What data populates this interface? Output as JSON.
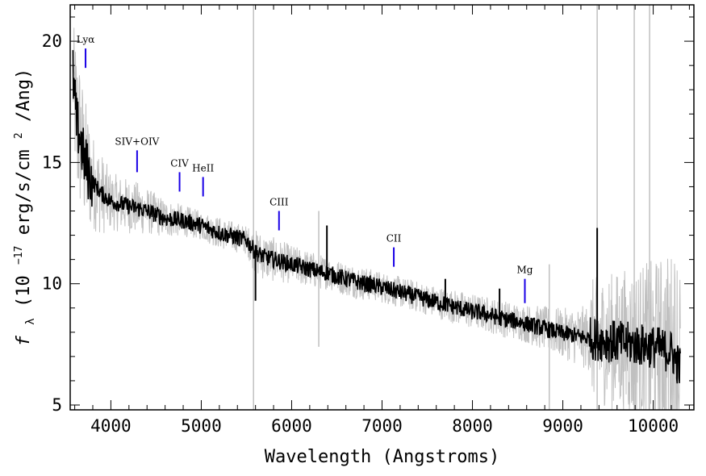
{
  "chart_data": {
    "type": "line",
    "title": "",
    "xlabel": "Wavelength (Angstroms)",
    "ylabel_prefix": "f",
    "ylabel_sub": "λ",
    "ylabel_unit_open": " (10",
    "ylabel_exp": "−17",
    "ylabel_unit_mid": " erg/s/cm",
    "ylabel_exp2": "2",
    "ylabel_unit_close": "/Ang)",
    "xlim": [
      3550,
      10450
    ],
    "ylim": [
      4.8,
      21.5
    ],
    "xticks": [
      4000,
      5000,
      6000,
      7000,
      8000,
      9000,
      10000
    ],
    "yticks": [
      5,
      10,
      15,
      20
    ],
    "xtick_labels": [
      "4000",
      "5000",
      "6000",
      "7000",
      "8000",
      "9000",
      "10000"
    ],
    "ytick_labels": [
      "5",
      "10",
      "15",
      "20"
    ],
    "series": [
      {
        "name": "flux",
        "color": "#000000",
        "x": [
          3580,
          3600,
          3620,
          3650,
          3680,
          3700,
          3750,
          3800,
          3900,
          4000,
          4100,
          4200,
          4300,
          4400,
          4500,
          4600,
          4700,
          4800,
          4900,
          5000,
          5100,
          5200,
          5300,
          5400,
          5500,
          5600,
          5700,
          5800,
          5900,
          6000,
          6100,
          6200,
          6300,
          6400,
          6500,
          6600,
          6700,
          6800,
          6900,
          7000,
          7100,
          7200,
          7300,
          7400,
          7500,
          7600,
          7700,
          7800,
          7900,
          8000,
          8100,
          8200,
          8300,
          8400,
          8500,
          8600,
          8700,
          8800,
          8900,
          9000,
          9100,
          9200,
          9300,
          9400,
          9500,
          9600,
          9700,
          9800,
          9900,
          10000,
          10100,
          10200,
          10300
        ],
        "values": [
          18.6,
          17.6,
          16.6,
          16.2,
          15.6,
          15.2,
          14.6,
          14.2,
          13.7,
          13.4,
          13.3,
          13.2,
          13.1,
          13.0,
          12.85,
          12.7,
          12.65,
          12.6,
          12.5,
          12.4,
          12.25,
          12.1,
          12.0,
          11.9,
          11.8,
          11.3,
          11.1,
          11.0,
          10.9,
          10.8,
          10.7,
          10.6,
          10.5,
          10.45,
          10.3,
          10.2,
          10.1,
          10.0,
          9.95,
          9.85,
          9.75,
          9.65,
          9.55,
          9.45,
          9.35,
          9.25,
          9.15,
          9.05,
          8.95,
          8.85,
          8.8,
          8.7,
          8.6,
          8.5,
          8.45,
          8.35,
          8.25,
          8.15,
          8.05,
          7.95,
          7.9,
          7.8,
          7.75,
          7.7,
          7.65,
          7.6,
          7.55,
          7.5,
          7.45,
          7.4,
          7.3,
          7.2,
          6.5
        ]
      },
      {
        "name": "flux_error_envelope",
        "color": "#c0c0c0",
        "x": [
          3580,
          3650,
          3700,
          3800,
          4000,
          4300,
          4600,
          5000,
          5500,
          6000,
          6500,
          7000,
          7500,
          8000,
          8500,
          9000,
          9500,
          10000,
          10300
        ],
        "values": [
          20.8,
          19.5,
          18.0,
          16.2,
          14.6,
          14.2,
          13.5,
          13.0,
          12.4,
          11.6,
          11.0,
          10.5,
          10.0,
          9.6,
          9.2,
          9.0,
          9.2,
          9.4,
          9.6
        ]
      }
    ],
    "spikes": [
      {
        "x": 5578,
        "y1": 4.8,
        "y2": 21.5,
        "color": "#c0c0c0"
      },
      {
        "x": 9380,
        "y1": 4.8,
        "y2": 21.5,
        "color": "#c0c0c0"
      },
      {
        "x": 9790,
        "y1": 4.8,
        "y2": 21.5,
        "color": "#c0c0c0"
      },
      {
        "x": 9960,
        "y1": 4.8,
        "y2": 21.5,
        "color": "#c0c0c0"
      },
      {
        "x": 6300,
        "y1": 7.4,
        "y2": 13.0,
        "color": "#c0c0c0"
      },
      {
        "x": 8850,
        "y1": 4.8,
        "y2": 10.8,
        "color": "#c0c0c0"
      },
      {
        "x": 6390,
        "y1": 10.2,
        "y2": 12.4,
        "color": "#000000"
      },
      {
        "x": 9380,
        "y1": 7.5,
        "y2": 12.3,
        "color": "#000000"
      },
      {
        "x": 5600,
        "y1": 9.3,
        "y2": 11.6,
        "color": "#000000"
      },
      {
        "x": 7700,
        "y1": 8.9,
        "y2": 10.2,
        "color": "#000000"
      },
      {
        "x": 8300,
        "y1": 8.3,
        "y2": 9.8,
        "color": "#000000"
      }
    ],
    "line_markers": [
      {
        "label": "Lyα",
        "x": 3720,
        "y_bottom": 18.9,
        "y_top": 19.7
      },
      {
        "label": "SIV+OIV",
        "x": 4290,
        "y_bottom": 14.6,
        "y_top": 15.5
      },
      {
        "label": "CIV",
        "x": 4760,
        "y_bottom": 13.8,
        "y_top": 14.6
      },
      {
        "label": "HeII",
        "x": 5020,
        "y_bottom": 13.6,
        "y_top": 14.4
      },
      {
        "label": "CIII",
        "x": 5860,
        "y_bottom": 12.2,
        "y_top": 13.0
      },
      {
        "label": "CII",
        "x": 7130,
        "y_bottom": 10.7,
        "y_top": 11.5
      },
      {
        "label": "Mg",
        "x": 8580,
        "y_bottom": 9.2,
        "y_top": 10.2
      }
    ],
    "marker_color": "#1a00e6"
  }
}
